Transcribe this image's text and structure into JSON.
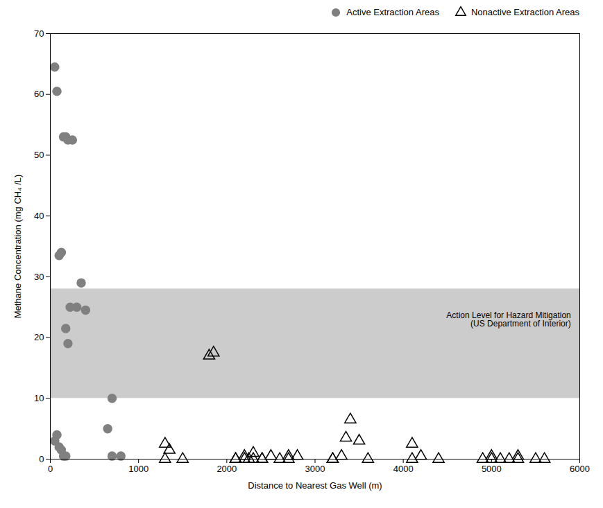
{
  "chart_data": {
    "type": "scatter",
    "xlabel": "Distance to Nearest Gas Well (m)",
    "ylabel": "Methane Concentration (mg CH₄ /L)",
    "xlim": [
      0,
      6000
    ],
    "ylim": [
      0,
      70
    ],
    "xticks": [
      0,
      1000,
      2000,
      3000,
      4000,
      5000,
      6000
    ],
    "yticks": [
      0,
      10,
      20,
      30,
      40,
      50,
      60,
      70
    ],
    "legend": "upper right",
    "grid": false,
    "series": [
      {
        "name": "Active Extraction Areas",
        "color": "#808080",
        "marker": "circle",
        "x": [
          50,
          75,
          150,
          175,
          200,
          250,
          100,
          125,
          175,
          200,
          225,
          300,
          350,
          400,
          650,
          700,
          800,
          700,
          50,
          75,
          100,
          125,
          150,
          175
        ],
        "values": [
          64.5,
          60.5,
          53,
          53,
          52.5,
          52.5,
          33.5,
          34,
          21.5,
          19,
          25,
          25,
          29,
          24.5,
          5,
          10,
          0.5,
          0.5,
          3,
          4,
          2,
          1.5,
          0.5,
          0.5
        ]
      },
      {
        "name": "Nonactive Extraction Areas",
        "color": "#000000",
        "marker": "triangle-open",
        "x": [
          1300,
          1350,
          1800,
          1850,
          2100,
          2200,
          2250,
          2300,
          2400,
          2500,
          2600,
          2700,
          2800,
          3200,
          3300,
          3400,
          3500,
          3600,
          4100,
          4200,
          4400,
          4900,
          5000,
          5100,
          5200,
          5300,
          5500,
          5600,
          1300,
          1500,
          2100,
          2200,
          2300,
          2400,
          2700,
          3200,
          3350,
          4100,
          5000,
          5300
        ],
        "values": [
          2.5,
          1.5,
          17,
          17.5,
          0,
          0.5,
          0,
          1,
          0,
          0.5,
          0,
          0.5,
          0.5,
          0,
          0.5,
          6.5,
          3,
          0,
          2.5,
          0.5,
          0,
          0,
          0.5,
          0,
          0,
          0.5,
          0,
          0,
          0,
          0,
          0,
          0,
          0,
          0,
          0,
          0,
          3.5,
          0,
          0,
          0
        ]
      }
    ],
    "action_level": {
      "low": 10,
      "high": 28,
      "color": "#cccccc"
    },
    "annotations": [
      {
        "text": "Action Level for Hazard Mitigation\n(US Department of Interior)",
        "x": 5900,
        "y": 23
      }
    ]
  }
}
